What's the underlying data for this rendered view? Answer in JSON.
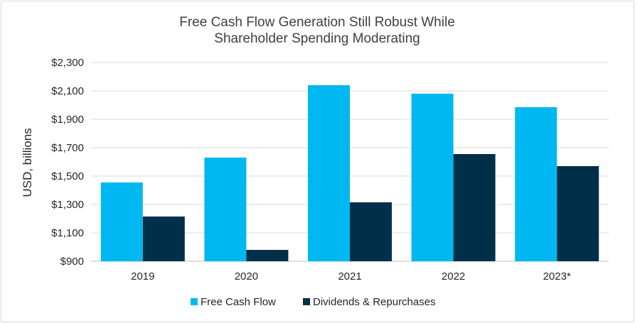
{
  "chart_data": {
    "type": "bar",
    "title": [
      "Free Cash Flow Generation Still Robust While",
      "Shareholder Spending Moderating"
    ],
    "ylabel": "USD, billions",
    "xlabel": "",
    "ylim": [
      900,
      2300
    ],
    "yticks": [
      "$900",
      "$1,100",
      "$1,300",
      "$1,500",
      "$1,700",
      "$1,900",
      "$2,100",
      "$2,300"
    ],
    "ytick_values": [
      900,
      1100,
      1300,
      1500,
      1700,
      1900,
      2100,
      2300
    ],
    "categories": [
      "2019",
      "2020",
      "2021",
      "2022",
      "2023*"
    ],
    "series": [
      {
        "name": "Free Cash Flow",
        "color": "#00b8f1",
        "values": [
          1455,
          1630,
          2140,
          2080,
          1985
        ]
      },
      {
        "name": "Dividends & Repurchases",
        "color": "#003049",
        "values": [
          1215,
          980,
          1315,
          1655,
          1570
        ]
      }
    ],
    "grid": true,
    "legend_position": "bottom-center"
  }
}
